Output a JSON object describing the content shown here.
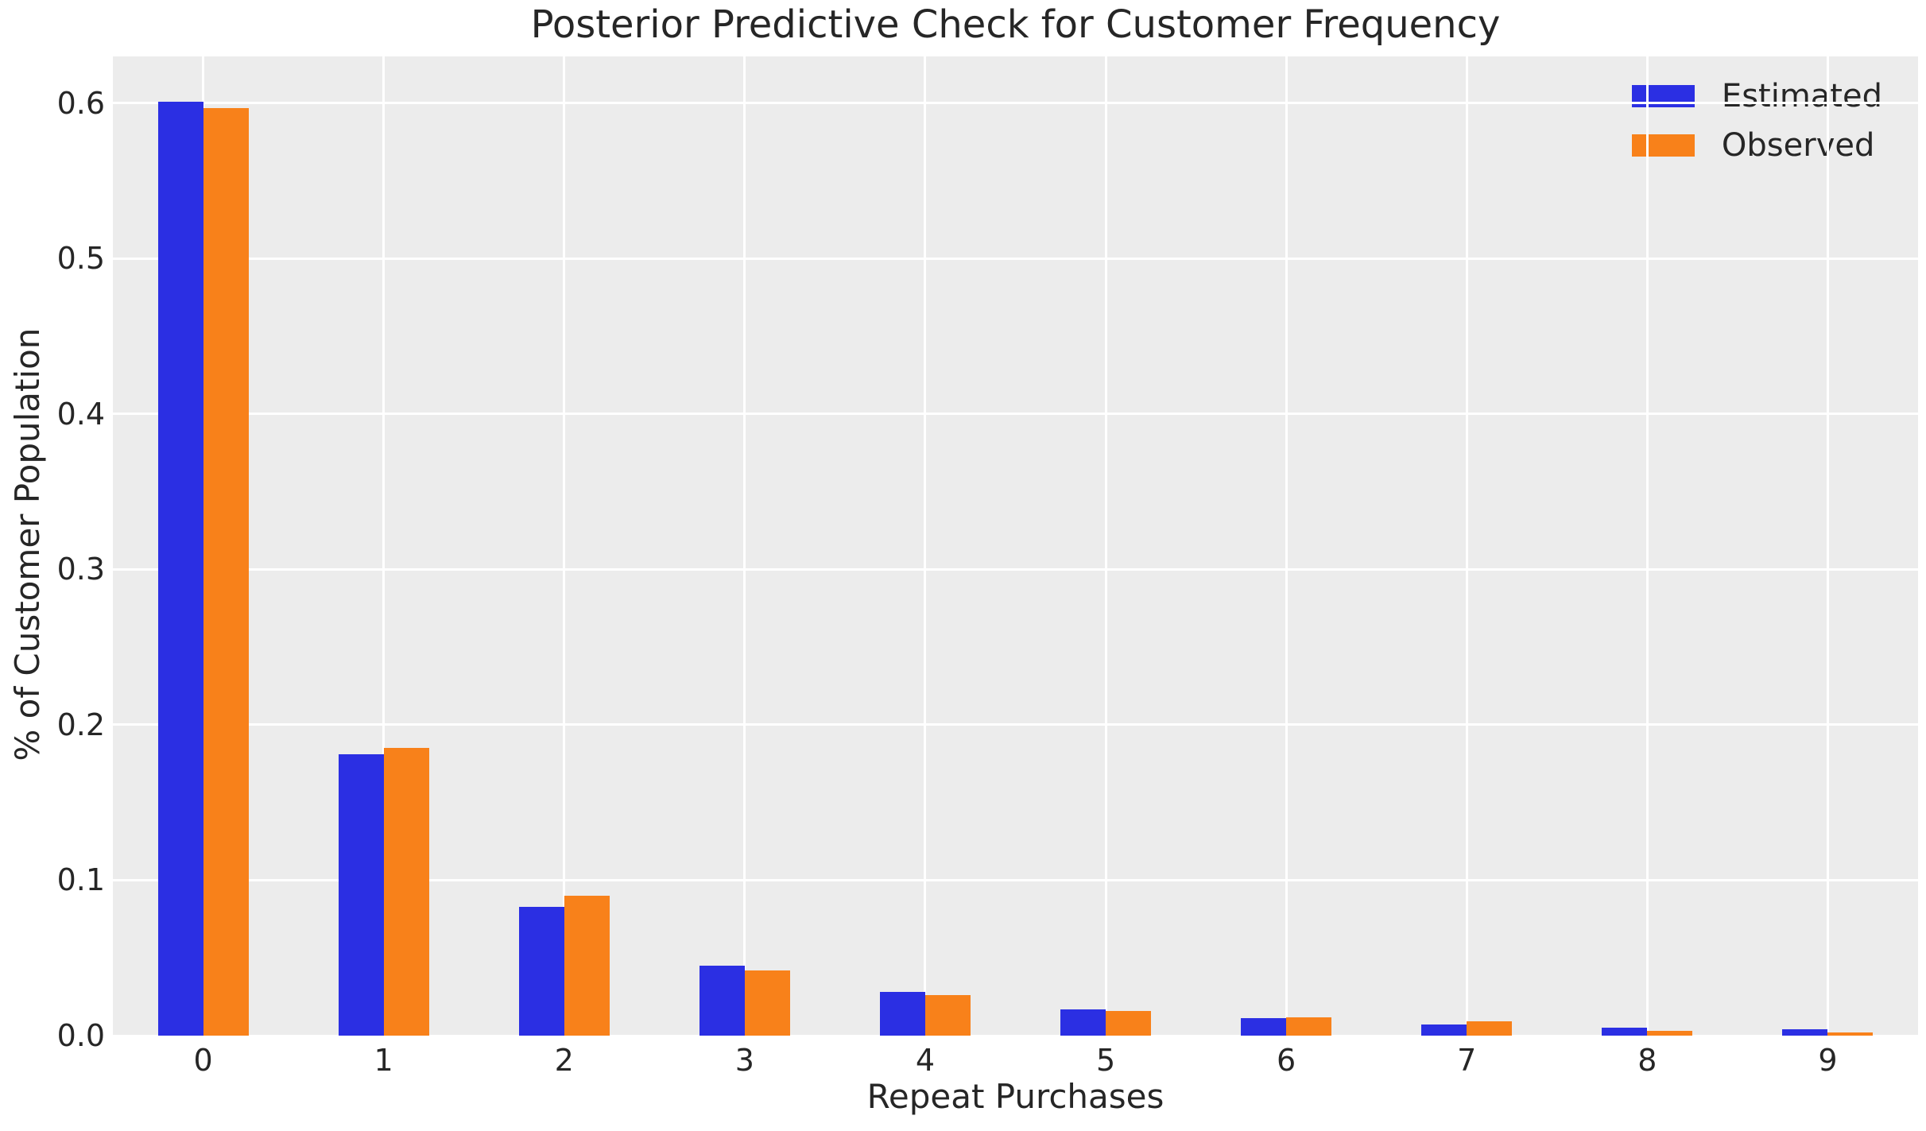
{
  "chart_data": {
    "type": "bar",
    "title": "Posterior Predictive Check for Customer Frequency",
    "xlabel": "Repeat Purchases",
    "ylabel": "% of Customer Population",
    "categories": [
      "0",
      "1",
      "2",
      "3",
      "4",
      "5",
      "6",
      "7",
      "8",
      "9"
    ],
    "series": [
      {
        "name": "Estimated",
        "color": "#2B2FE3",
        "values": [
          0.601,
          0.181,
          0.083,
          0.045,
          0.028,
          0.017,
          0.011,
          0.007,
          0.005,
          0.004
        ]
      },
      {
        "name": "Observed",
        "color": "#F8811A",
        "values": [
          0.597,
          0.185,
          0.09,
          0.042,
          0.026,
          0.016,
          0.012,
          0.009,
          0.003,
          0.002
        ]
      }
    ],
    "ylim": [
      0,
      0.63
    ],
    "yticks": [
      0.0,
      0.1,
      0.2,
      0.3,
      0.4,
      0.5,
      0.6
    ],
    "ytick_labels": [
      "0.0",
      "0.1",
      "0.2",
      "0.3",
      "0.4",
      "0.5",
      "0.6"
    ],
    "grid": true,
    "grid_color": "#FFFFFF",
    "plot_bg": "#ECECEC",
    "figure_bg": "#FFFFFF",
    "text_color": "#262626",
    "legend_position": "upper right"
  }
}
